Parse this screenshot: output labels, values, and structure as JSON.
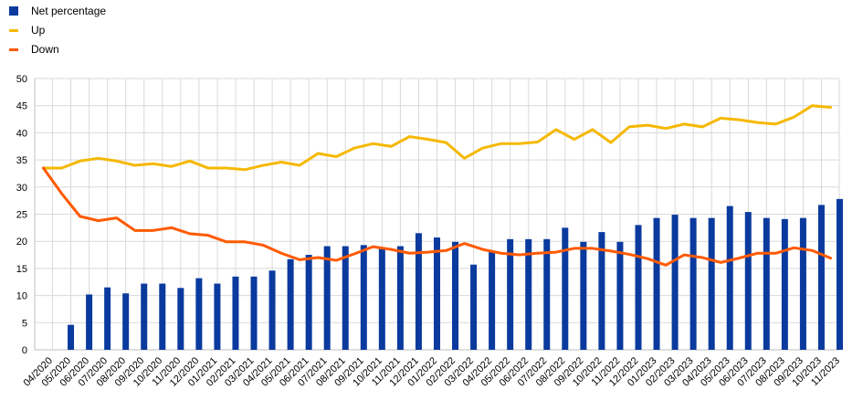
{
  "colors": {
    "bars": "#0a3a9e",
    "up": "#f5b800",
    "down": "#ff5a00",
    "grid": "#d9d9d9",
    "axis": "#bfbfbf"
  },
  "chart_data": {
    "type": "bar",
    "title": "",
    "xlabel": "",
    "ylabel": "",
    "ylim": [
      0,
      50
    ],
    "yticks": [
      0,
      5,
      10,
      15,
      20,
      25,
      30,
      35,
      40,
      45,
      50
    ],
    "grid": true,
    "legend_position": "top-left",
    "categories": [
      "04/2020",
      "05/2020",
      "06/2020",
      "07/2020",
      "08/2020",
      "09/2020",
      "10/2020",
      "11/2020",
      "12/2020",
      "01/2021",
      "02/2021",
      "03/2021",
      "04/2021",
      "05/2021",
      "06/2021",
      "07/2021",
      "08/2021",
      "09/2021",
      "10/2021",
      "11/2021",
      "12/2021",
      "01/2022",
      "02/2022",
      "03/2022",
      "04/2022",
      "05/2022",
      "06/2022",
      "07/2022",
      "08/2022",
      "09/2022",
      "10/2022",
      "11/2022",
      "12/2022",
      "01/2023",
      "02/2023",
      "03/2023",
      "04/2023",
      "05/2023",
      "06/2023",
      "07/2023",
      "08/2023",
      "09/2023",
      "10/2023",
      "11/2023"
    ],
    "series": [
      {
        "name": "Net percentage",
        "kind": "bar",
        "values": [
          null,
          4.6,
          10.2,
          11.5,
          10.4,
          12.2,
          12.2,
          11.4,
          13.2,
          12.2,
          13.5,
          13.5,
          14.6,
          16.7,
          17.5,
          19.1,
          19.1,
          19.3,
          18.9,
          19.1,
          21.5,
          20.7,
          19.9,
          15.7,
          18.2,
          20.4,
          20.4,
          20.4,
          22.5,
          19.9,
          21.7,
          19.9,
          23.0,
          24.3,
          24.9,
          24.3,
          24.3,
          26.5,
          25.4,
          24.3,
          24.1,
          24.3,
          26.7,
          27.8
        ]
      },
      {
        "name": "Up",
        "kind": "line",
        "values": [
          33.5,
          33.5,
          34.8,
          35.3,
          34.8,
          34.0,
          34.3,
          33.8,
          34.8,
          33.5,
          33.5,
          33.2,
          34.0,
          34.6,
          34.0,
          36.2,
          35.6,
          37.2,
          38.0,
          37.5,
          39.3,
          38.8,
          38.2,
          35.3,
          37.2,
          38.0,
          38.0,
          38.3,
          40.6,
          38.8,
          40.6,
          38.2,
          41.1,
          41.4,
          40.8,
          41.6,
          41.1,
          42.7,
          42.4,
          41.9,
          41.6,
          42.9,
          45.0,
          44.7
        ]
      },
      {
        "name": "Down",
        "kind": "line",
        "values": [
          33.5,
          28.8,
          24.6,
          23.8,
          24.3,
          22.0,
          22.0,
          22.5,
          21.4,
          21.1,
          19.9,
          19.9,
          19.3,
          17.8,
          16.6,
          17.0,
          16.5,
          17.7,
          19.0,
          18.5,
          17.8,
          18.0,
          18.3,
          19.6,
          18.5,
          17.8,
          17.5,
          17.8,
          18.0,
          18.7,
          18.7,
          18.2,
          17.6,
          16.8,
          15.6,
          17.5,
          17.0,
          16.1,
          16.9,
          17.8,
          17.8,
          18.8,
          18.3,
          16.9
        ]
      }
    ]
  },
  "legend": [
    {
      "label": "Net percentage",
      "color": "#0a3a9e",
      "kind": "bar"
    },
    {
      "label": "Up",
      "color": "#f5b800",
      "kind": "line"
    },
    {
      "label": "Down",
      "color": "#ff5a00",
      "kind": "line"
    }
  ]
}
